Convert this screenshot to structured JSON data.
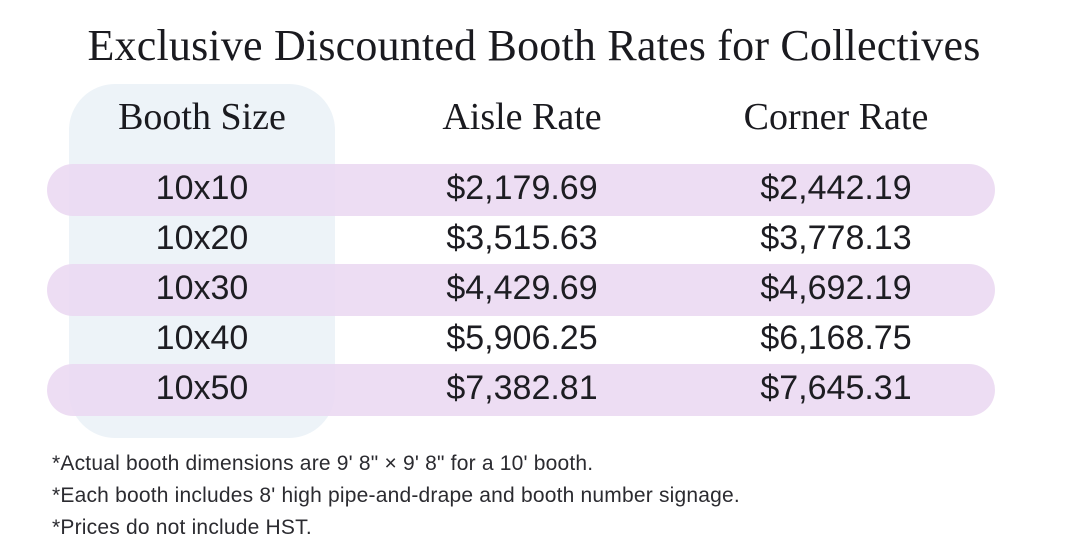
{
  "title": "Exclusive Discounted Booth Rates for Collectives",
  "table": {
    "headers": [
      "Booth Size",
      "Aisle Rate",
      "Corner Rate"
    ],
    "rows": [
      {
        "size": "10x10",
        "aisle": "$2,179.69",
        "corner": "$2,442.19"
      },
      {
        "size": "10x20",
        "aisle": "$3,515.63",
        "corner": "$3,778.13"
      },
      {
        "size": "10x30",
        "aisle": "$4,429.69",
        "corner": "$4,692.19"
      },
      {
        "size": "10x40",
        "aisle": "$5,906.25",
        "corner": "$6,168.75"
      },
      {
        "size": "10x50",
        "aisle": "$7,382.81",
        "corner": "$7,645.31"
      }
    ]
  },
  "notes": [
    "*Actual booth dimensions are 9' 8\" × 9' 8\" for a 10' booth.",
    "*Each booth includes 8' high pipe-and-drape and booth number signage.",
    "*Prices do not include HST."
  ],
  "colors": {
    "column_highlight": "#edf3f8",
    "row_band": "#ead8f1",
    "text": "#1d1d22"
  }
}
